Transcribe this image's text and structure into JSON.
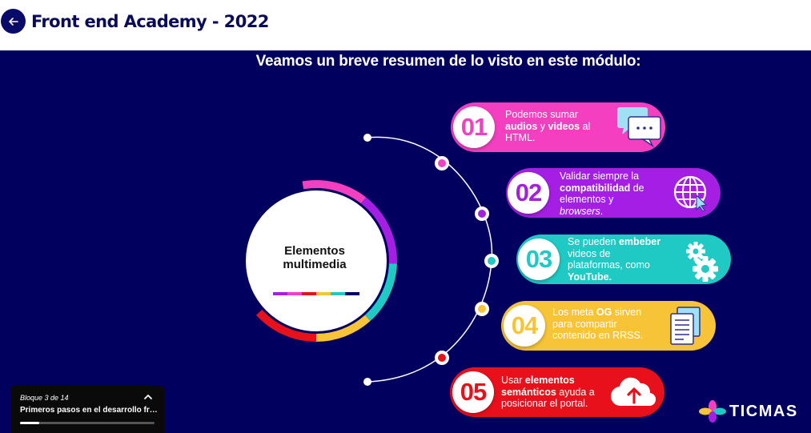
{
  "header": {
    "title": "Front end Academy - 2022",
    "back_icon": "arrow-left-icon"
  },
  "slide": {
    "heading": "Veamos un breve resumen de lo visto en este módulo:",
    "center": {
      "line1": "Elementos",
      "line2": "multimedia"
    },
    "items": [
      {
        "number": "01",
        "color": "#f43fc0",
        "icon": "chat-bubbles-icon",
        "parts": [
          [
            "Podemos sumar",
            ""
          ],
          [
            "\n",
            ""
          ],
          [
            "audios",
            "b"
          ],
          [
            " y ",
            ""
          ],
          [
            "videos",
            "b"
          ],
          [
            " al",
            ""
          ],
          [
            "\n",
            ""
          ],
          [
            "HTML.",
            ""
          ]
        ]
      },
      {
        "number": "02",
        "color": "#a41fe3",
        "icon": "globe-icon",
        "parts": [
          [
            "Validar siempre la",
            ""
          ],
          [
            "\n",
            ""
          ],
          [
            "compatibilidad",
            "b"
          ],
          [
            " de",
            ""
          ],
          [
            "\n",
            ""
          ],
          [
            "elementos y",
            ""
          ],
          [
            "\n",
            ""
          ],
          [
            "browsers",
            "i"
          ],
          [
            ".",
            ""
          ]
        ]
      },
      {
        "number": "03",
        "color": "#1fc9c4",
        "icon": "gears-icon",
        "parts": [
          [
            "Se pueden ",
            ""
          ],
          [
            "embeber",
            "b"
          ],
          [
            "\n",
            ""
          ],
          [
            "videos de",
            ""
          ],
          [
            "\n",
            ""
          ],
          [
            "plataformas, como",
            ""
          ],
          [
            "\n",
            ""
          ],
          [
            "YouTube.",
            "b"
          ]
        ]
      },
      {
        "number": "04",
        "color": "#f7c437",
        "icon": "documents-icon",
        "parts": [
          [
            "Los meta ",
            ""
          ],
          [
            "OG",
            "b"
          ],
          [
            " sirven",
            ""
          ],
          [
            "\n",
            ""
          ],
          [
            "para compartir",
            ""
          ],
          [
            "\n",
            ""
          ],
          [
            "contenido en RRSS.",
            ""
          ]
        ]
      },
      {
        "number": "05",
        "color": "#e8101b",
        "icon": "cloud-upload-icon",
        "parts": [
          [
            "Usar ",
            ""
          ],
          [
            "elementos",
            "b"
          ],
          [
            "\n",
            ""
          ],
          [
            "semánticos",
            "b"
          ],
          [
            " ayuda a",
            ""
          ],
          [
            "\n",
            ""
          ],
          [
            "posicionar el portal.",
            ""
          ]
        ]
      }
    ],
    "color_strip": [
      "#a41fe3",
      "#f43fc0",
      "#e8101b",
      "#f7c437",
      "#1fc9c4",
      "#01005e"
    ],
    "ring_colors": [
      "#f43fc0",
      "#a41fe3",
      "#1fc9c4",
      "#f7c437",
      "#e8101b"
    ]
  },
  "brand": {
    "name": "TICMAS"
  },
  "progress": {
    "counter": "Bloque 3 de 14",
    "title": "Primeros pasos en el desarrollo fro...",
    "fraction": 0.14,
    "toggle_icon": "chevron-up-icon"
  }
}
